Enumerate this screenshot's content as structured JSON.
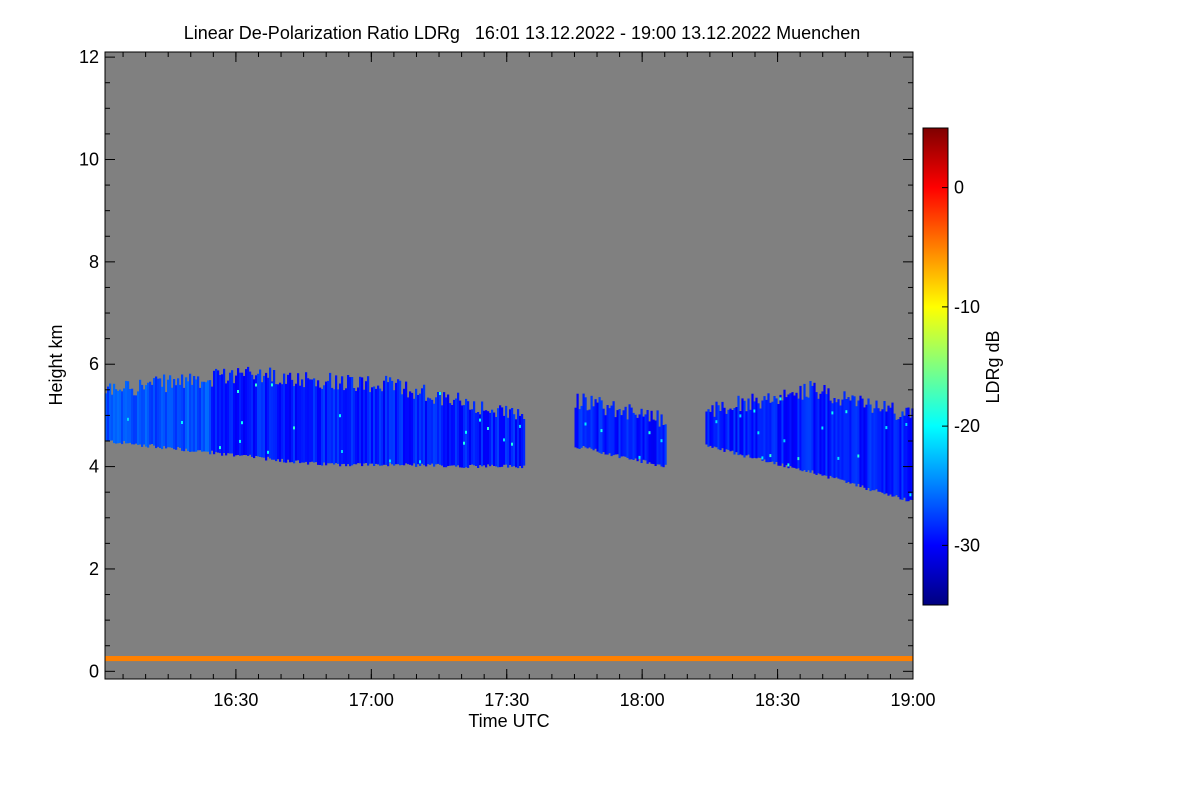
{
  "chart_data": {
    "type": "heatmap",
    "title": "Linear De-Polarization Ratio LDRg   16:01 13.12.2022 - 19:00 13.12.2022 Muenchen",
    "xlabel": "Time UTC",
    "ylabel": "Height km",
    "x_range_min": [
      961,
      1140
    ],
    "x_ticks_min": [
      990,
      1020,
      1050,
      1080,
      1110,
      1140
    ],
    "x_tick_labels": [
      "16:30",
      "17:00",
      "17:30",
      "18:00",
      "18:30",
      "19:00"
    ],
    "y_range_km": [
      -0.15,
      12.1
    ],
    "y_ticks": [
      0,
      2,
      4,
      6,
      8,
      10,
      12
    ],
    "y_tick_labels": [
      "0",
      "2",
      "4",
      "6",
      "8",
      "10",
      "12"
    ],
    "background_color": "#808080",
    "colorbar": {
      "label": "LDRg dB",
      "range_db": [
        -35,
        5
      ],
      "ticks": [
        0,
        -10,
        -20,
        -30
      ],
      "tick_labels": [
        "0",
        "-10",
        "-20",
        "-30"
      ],
      "colormap": [
        "#00007f",
        "#0000ff",
        "#0080ff",
        "#00ffff",
        "#80ff80",
        "#ffff00",
        "#ff8000",
        "#ff0000",
        "#7f0000"
      ]
    },
    "cloud_layer": {
      "typical_ldr_db": -29,
      "segments": [
        {
          "time_min": [
            961,
            1054
          ],
          "base_km": [
            4.5,
            4.05,
            4.0
          ],
          "top_km": [
            5.5,
            5.8,
            5.6,
            5.0
          ]
        },
        {
          "time_min": [
            1065,
            1085
          ],
          "base_km": [
            4.4,
            4.0
          ],
          "top_km": [
            5.3,
            4.9
          ]
        },
        {
          "time_min": [
            1094,
            1140
          ],
          "base_km": [
            4.4,
            3.9,
            3.3
          ],
          "top_km": [
            5.1,
            5.5,
            5.0
          ]
        }
      ]
    },
    "surface_layer": {
      "height_km": [
        0.2,
        0.3
      ],
      "ldr_db": -5
    }
  }
}
